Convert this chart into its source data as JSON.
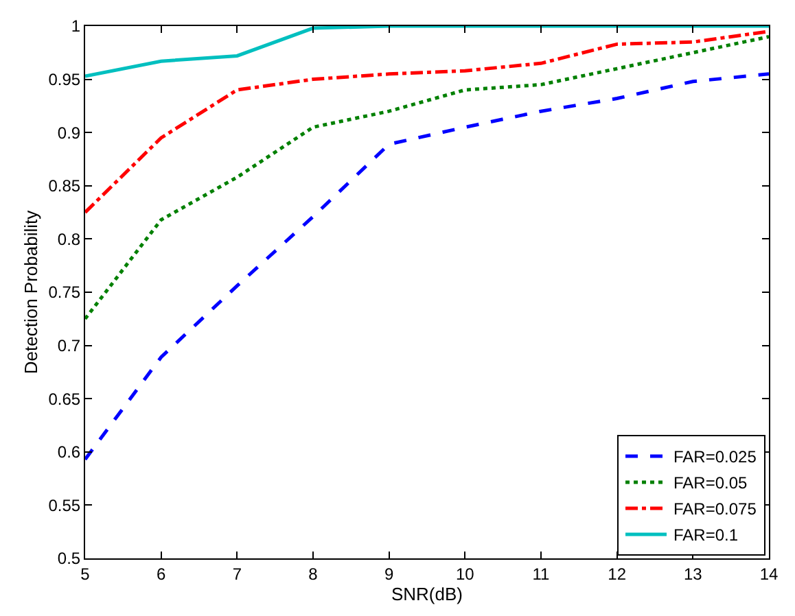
{
  "chart_data": {
    "type": "line",
    "xlabel": "SNR(dB)",
    "ylabel": "Detection Probability",
    "x": [
      5,
      6,
      7,
      8,
      9,
      10,
      11,
      12,
      13,
      14
    ],
    "xlim": [
      5,
      14
    ],
    "xticks": [
      5,
      6,
      7,
      8,
      9,
      10,
      11,
      12,
      13,
      14
    ],
    "ylim": [
      0.5,
      1
    ],
    "yticks": [
      0.5,
      0.55,
      0.6,
      0.65,
      0.7,
      0.75,
      0.8,
      0.85,
      0.9,
      0.95,
      1
    ],
    "legend": "bottom right",
    "marker": "none",
    "series": [
      {
        "name": "FAR=0.025",
        "color": "#0000ff",
        "line_style": "dashed",
        "values": [
          0.593,
          0.689,
          0.756,
          0.821,
          0.889,
          0.905,
          0.92,
          0.932,
          0.948,
          0.955
        ]
      },
      {
        "name": "FAR=0.05",
        "color": "#008000",
        "line_style": "dotted",
        "values": [
          0.725,
          0.818,
          0.858,
          0.905,
          0.92,
          0.94,
          0.945,
          0.96,
          0.975,
          0.99
        ]
      },
      {
        "name": "FAR=0.075",
        "color": "#ff0000",
        "line_style": "dashdot",
        "values": [
          0.825,
          0.895,
          0.94,
          0.95,
          0.955,
          0.958,
          0.965,
          0.983,
          0.985,
          0.995
        ]
      },
      {
        "name": "FAR=0.1",
        "color": "#00bfbf",
        "line_style": "solid",
        "values": [
          0.953,
          0.967,
          0.972,
          0.998,
          1,
          1,
          1,
          1,
          1,
          1
        ]
      }
    ]
  }
}
